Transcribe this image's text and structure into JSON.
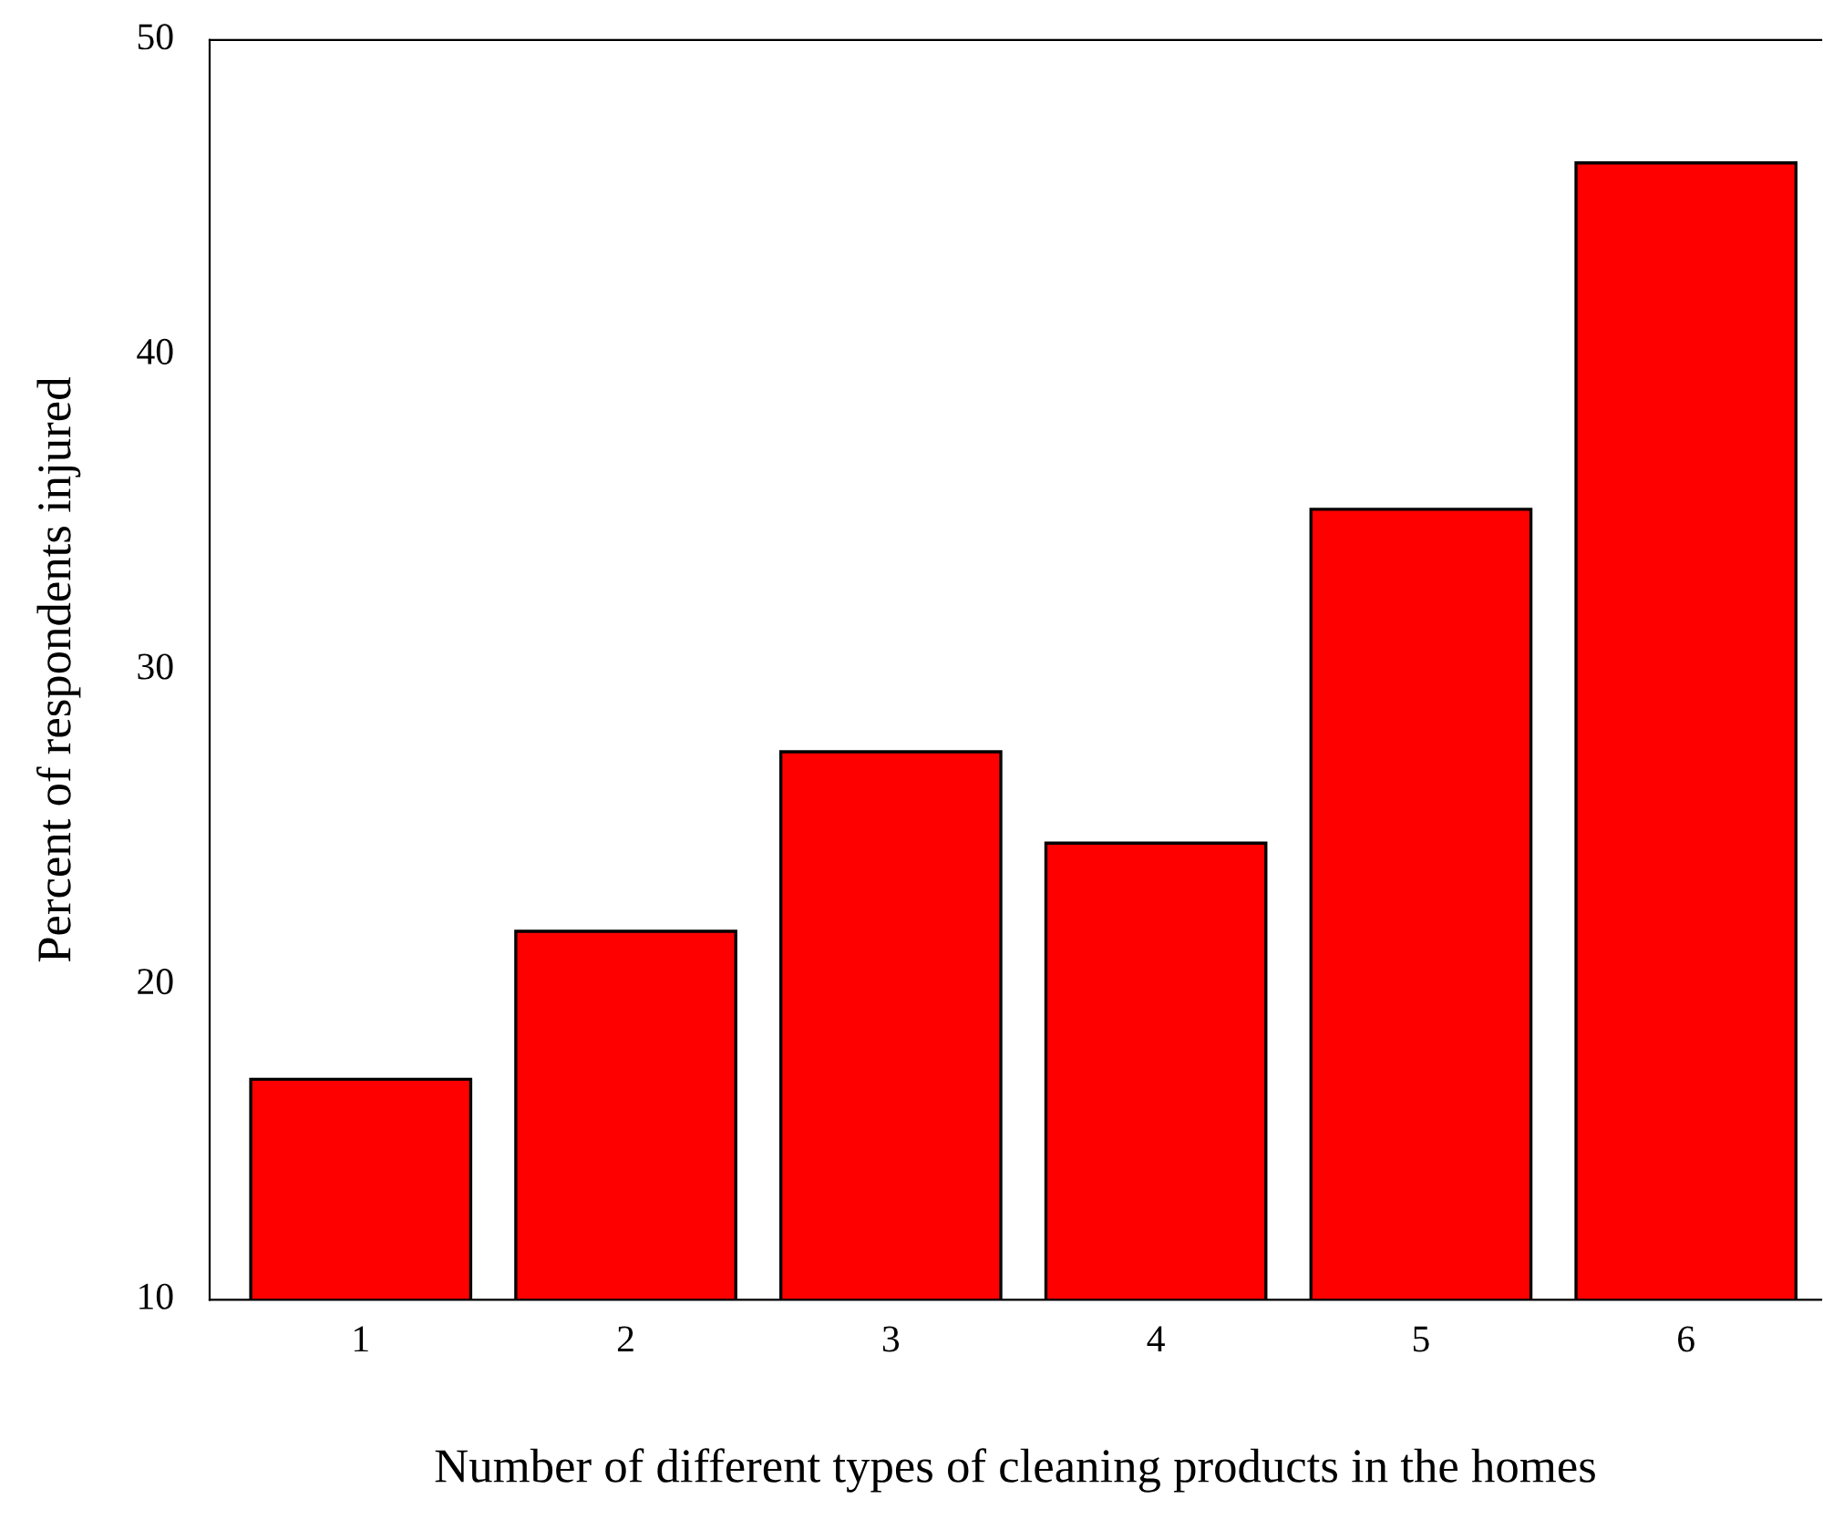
{
  "chart_data": {
    "type": "bar",
    "xlabel": "Number of different types of cleaning products in the homes",
    "ylabel": "Percent of respondents injured",
    "categories": [
      "1",
      "2",
      "3",
      "4",
      "5",
      "6"
    ],
    "values": [
      17.0,
      21.7,
      27.4,
      24.5,
      35.1,
      46.1
    ],
    "color": "#ff0000",
    "ylim": [
      10,
      50
    ],
    "yticks": [
      10,
      20,
      30,
      40,
      50
    ]
  }
}
